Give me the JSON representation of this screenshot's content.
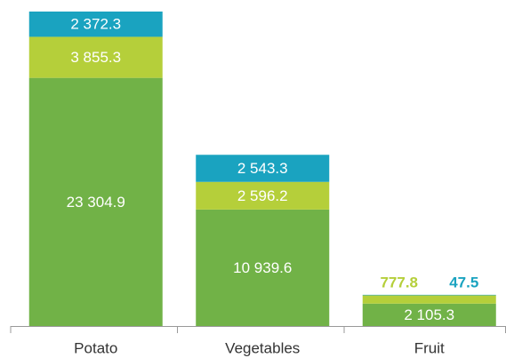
{
  "chart_data": {
    "type": "stacked_bar",
    "categories": [
      "Potato",
      "Vegetables",
      "Fruit"
    ],
    "series": [
      {
        "color": "#71b247",
        "values": [
          23304.9,
          10939.6,
          2105.3
        ],
        "value_labels": [
          "23 304.9",
          "10 939.6",
          "2 105.3"
        ]
      },
      {
        "color": "#b5cf3a",
        "values": [
          3855.3,
          2596.2,
          777.8
        ],
        "value_labels": [
          "3 855.3",
          "2 596.2",
          "777.8"
        ]
      },
      {
        "color": "#1aa3c0",
        "values": [
          2372.3,
          2543.3,
          47.5
        ],
        "value_labels": [
          "2 372.3",
          "2 543.3",
          "47.5"
        ]
      }
    ],
    "ylim": [
      0,
      30000
    ]
  }
}
